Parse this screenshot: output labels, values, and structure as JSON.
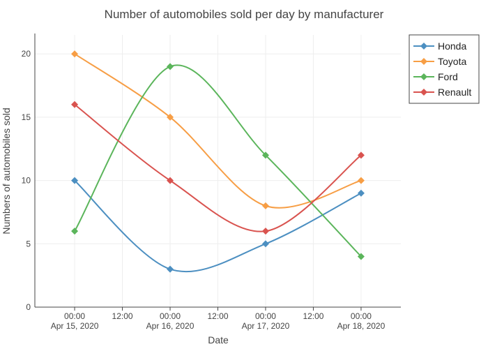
{
  "chart_data": {
    "type": "line",
    "title": "Number of automobiles sold per day by manufacturer",
    "xlabel": "Date",
    "ylabel": "Numbers of automobiles sold",
    "x_categories": [
      "2020-04-15",
      "2020-04-16",
      "2020-04-17",
      "2020-04-18"
    ],
    "x_ticks": [
      {
        "value": "2020-04-15 00:00",
        "label_line1": "00:00",
        "label_line2": "Apr 15, 2020"
      },
      {
        "value": "2020-04-15 12:00",
        "label_line1": "12:00",
        "label_line2": ""
      },
      {
        "value": "2020-04-16 00:00",
        "label_line1": "00:00",
        "label_line2": "Apr 16, 2020"
      },
      {
        "value": "2020-04-16 12:00",
        "label_line1": "12:00",
        "label_line2": ""
      },
      {
        "value": "2020-04-17 00:00",
        "label_line1": "00:00",
        "label_line2": "Apr 17, 2020"
      },
      {
        "value": "2020-04-17 12:00",
        "label_line1": "12:00",
        "label_line2": ""
      },
      {
        "value": "2020-04-18 00:00",
        "label_line1": "00:00",
        "label_line2": "Apr 18, 2020"
      }
    ],
    "y_ticks": [
      0,
      5,
      10,
      15,
      20
    ],
    "ylim": [
      0,
      21.5
    ],
    "xlim": [
      "2020-04-14 14:00",
      "2020-04-18 10:00"
    ],
    "grid": true,
    "legend_position": "top-right",
    "series": [
      {
        "name": "Honda",
        "color": "#4c8fc1",
        "values": [
          10,
          3,
          5,
          9
        ]
      },
      {
        "name": "Toyota",
        "color": "#f79e45",
        "values": [
          20,
          15,
          8,
          10
        ]
      },
      {
        "name": "Ford",
        "color": "#5bb55b",
        "values": [
          6,
          19,
          12,
          4
        ]
      },
      {
        "name": "Renault",
        "color": "#d9534f",
        "values": [
          16,
          10,
          6,
          12
        ]
      }
    ]
  }
}
